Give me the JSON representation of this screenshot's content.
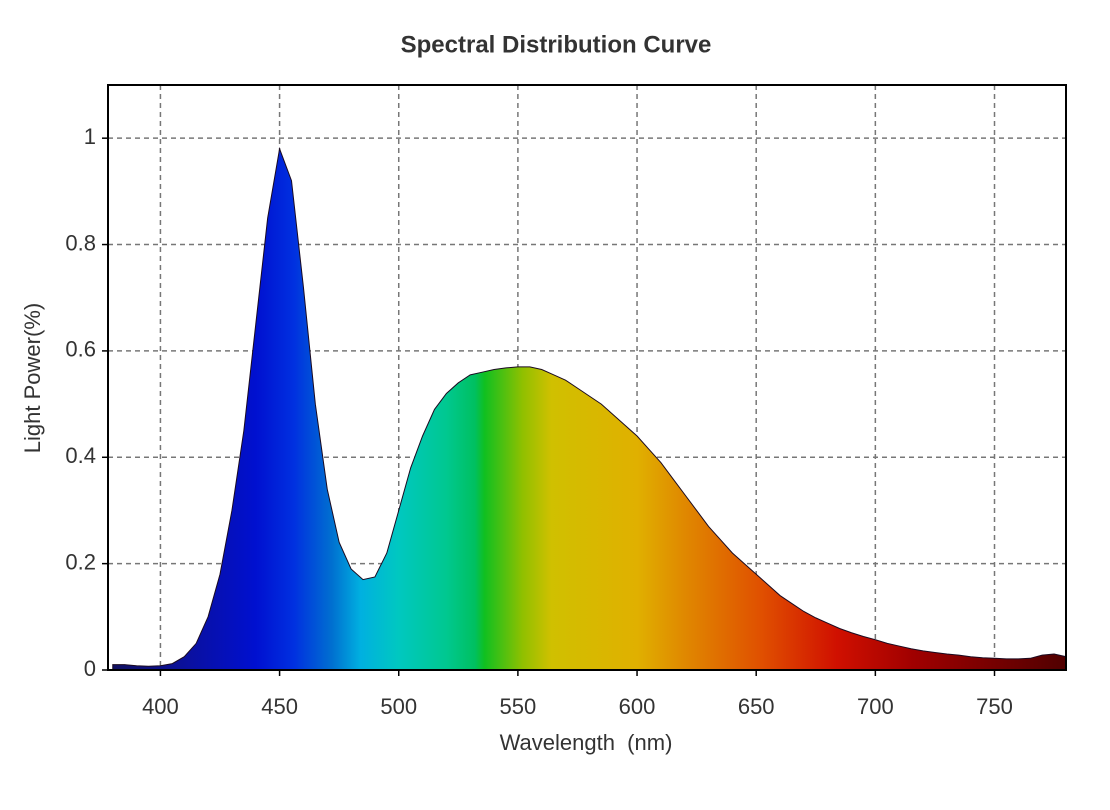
{
  "chart_data": {
    "type": "area",
    "title": "Spectral Distribution Curve",
    "x_label": "Wavelength  (nm)",
    "y_label": "Light Power(%)",
    "x": [
      380,
      385,
      390,
      395,
      400,
      405,
      410,
      415,
      420,
      425,
      430,
      435,
      440,
      445,
      450,
      455,
      460,
      465,
      470,
      475,
      480,
      485,
      490,
      495,
      500,
      505,
      510,
      515,
      520,
      525,
      530,
      535,
      540,
      545,
      550,
      555,
      560,
      565,
      570,
      575,
      580,
      585,
      590,
      595,
      600,
      605,
      610,
      615,
      620,
      625,
      630,
      635,
      640,
      645,
      650,
      655,
      660,
      665,
      670,
      675,
      680,
      685,
      690,
      695,
      700,
      705,
      710,
      715,
      720,
      725,
      730,
      735,
      740,
      745,
      750,
      755,
      760,
      765,
      770,
      775,
      780
    ],
    "values": [
      0.01,
      0.01,
      0.008,
      0.007,
      0.008,
      0.012,
      0.025,
      0.05,
      0.1,
      0.18,
      0.3,
      0.45,
      0.65,
      0.85,
      0.98,
      0.92,
      0.72,
      0.5,
      0.34,
      0.24,
      0.19,
      0.17,
      0.175,
      0.22,
      0.3,
      0.38,
      0.44,
      0.49,
      0.52,
      0.54,
      0.555,
      0.56,
      0.565,
      0.568,
      0.57,
      0.57,
      0.565,
      0.555,
      0.545,
      0.53,
      0.515,
      0.5,
      0.48,
      0.46,
      0.44,
      0.415,
      0.39,
      0.36,
      0.33,
      0.3,
      0.27,
      0.245,
      0.22,
      0.2,
      0.18,
      0.16,
      0.14,
      0.125,
      0.11,
      0.098,
      0.088,
      0.078,
      0.07,
      0.063,
      0.057,
      0.05,
      0.045,
      0.04,
      0.036,
      0.033,
      0.03,
      0.028,
      0.025,
      0.023,
      0.022,
      0.021,
      0.021,
      0.022,
      0.028,
      0.03,
      0.025
    ],
    "xlim": [
      378,
      780
    ],
    "ylim": [
      0,
      1.1
    ],
    "xticks": [
      400,
      450,
      500,
      550,
      600,
      650,
      700,
      750
    ],
    "yticks": [
      0,
      0.2,
      0.4,
      0.6,
      0.8,
      1
    ],
    "grid": true
  }
}
